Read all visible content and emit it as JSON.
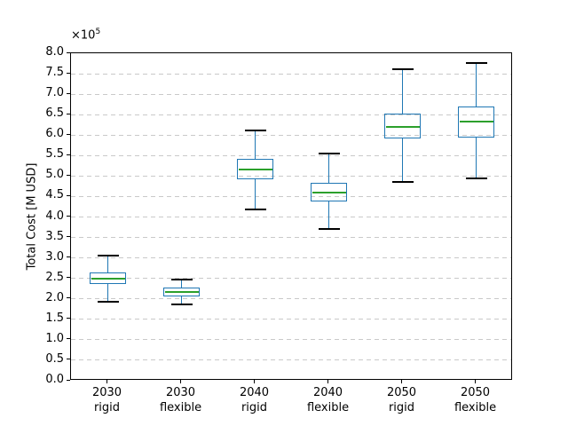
{
  "figure": {
    "ylabel": "Total Cost [M USD]",
    "offset_base": "×10",
    "offset_exp": "5"
  },
  "chart_data": {
    "type": "boxplot",
    "title": "",
    "xlabel": "",
    "ylabel": "Total Cost [M USD]",
    "y_scale_label": "×10^5",
    "y_scale_factor": 100000,
    "ylim": [
      0.0,
      8.0
    ],
    "ytick_step": 0.5,
    "yticks": [
      "0.0",
      "0.5",
      "1.0",
      "1.5",
      "2.0",
      "2.5",
      "3.0",
      "3.5",
      "4.0",
      "4.5",
      "5.0",
      "5.5",
      "6.0",
      "6.5",
      "7.0",
      "7.5",
      "8.0"
    ],
    "grid": "horizontal-dashed",
    "legend": "none",
    "categories": [
      {
        "line1": "2030",
        "line2": "rigid"
      },
      {
        "line1": "2030",
        "line2": "flexible"
      },
      {
        "line1": "2040",
        "line2": "rigid"
      },
      {
        "line1": "2040",
        "line2": "flexible"
      },
      {
        "line1": "2050",
        "line2": "rigid"
      },
      {
        "line1": "2050",
        "line2": "flexible"
      }
    ],
    "series": [
      {
        "label": "2030 rigid",
        "whisker_low": 1.93,
        "q1": 2.37,
        "median": 2.5,
        "q3": 2.64,
        "whisker_high": 3.06
      },
      {
        "label": "2030 flexible",
        "whisker_low": 1.86,
        "q1": 2.05,
        "median": 2.16,
        "q3": 2.27,
        "whisker_high": 2.47
      },
      {
        "label": "2040 rigid",
        "whisker_low": 4.19,
        "q1": 4.93,
        "median": 5.15,
        "q3": 5.41,
        "whisker_high": 6.12
      },
      {
        "label": "2040 flexible",
        "whisker_low": 3.71,
        "q1": 4.37,
        "median": 4.6,
        "q3": 4.83,
        "whisker_high": 5.55
      },
      {
        "label": "2050 rigid",
        "whisker_low": 4.85,
        "q1": 5.91,
        "median": 6.21,
        "q3": 6.53,
        "whisker_high": 7.62
      },
      {
        "label": "2050 flexible",
        "whisker_low": 4.95,
        "q1": 5.95,
        "median": 6.33,
        "q3": 6.7,
        "whisker_high": 7.76
      }
    ],
    "colors": {
      "box": "#1f77b4",
      "whisker": "#1f77b4",
      "cap": "#000000",
      "median": "#2ca02c",
      "grid": "#c9c9c9",
      "spine": "#000000",
      "background": "#ffffff"
    }
  }
}
